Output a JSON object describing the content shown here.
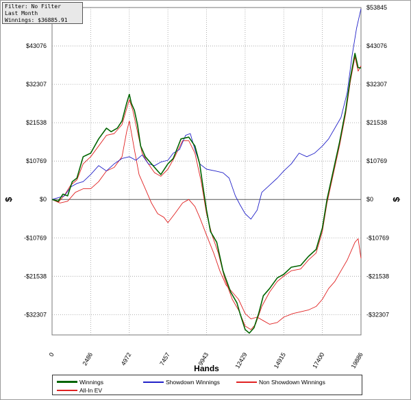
{
  "info": {
    "filter": "Filter: No Filter",
    "period": "Last Month",
    "winnings": "Winnings: $36885.91"
  },
  "colors": {
    "winnings": "#006400",
    "showdown": "#2020c8",
    "non_showdown": "#e02020",
    "allin_ev": "#e02020",
    "zero_line": "#555555",
    "grid": "#9a9a9a"
  },
  "legend": [
    {
      "name": "Winnings",
      "color": "#006400"
    },
    {
      "name": "Showdown Winnings",
      "color": "#2020c8"
    },
    {
      "name": "Non Showdown Winnings",
      "color": "#e02020"
    },
    {
      "name": "All-In EV",
      "color": "#e02020"
    }
  ],
  "chart_data": {
    "type": "line",
    "title": "",
    "xlabel": "Hands",
    "ylabel": "$",
    "xlim": [
      0,
      19886
    ],
    "ylim": [
      -38000,
      53845
    ],
    "x_ticks": [
      0,
      2486,
      4972,
      7457,
      9943,
      12429,
      14915,
      17400,
      19886
    ],
    "y_ticks": [
      53845,
      43076,
      32307,
      21538,
      10769,
      0,
      -10769,
      -21538,
      -32307
    ],
    "y_tick_labels": [
      "$53845",
      "$43076",
      "$32307",
      "$21538",
      "$10769",
      "$0",
      "-$10769",
      "-$21538",
      "-$32307"
    ],
    "grid": true,
    "legend_position": "bottom",
    "series": [
      {
        "name": "Winnings",
        "points": [
          [
            0,
            0
          ],
          [
            400,
            -500
          ],
          [
            700,
            1500
          ],
          [
            1000,
            1000
          ],
          [
            1300,
            5000
          ],
          [
            1600,
            6000
          ],
          [
            2000,
            12000
          ],
          [
            2486,
            13000
          ],
          [
            3000,
            17000
          ],
          [
            3500,
            20000
          ],
          [
            3800,
            19000
          ],
          [
            4200,
            20000
          ],
          [
            4500,
            22000
          ],
          [
            4800,
            27000
          ],
          [
            4972,
            29500
          ],
          [
            5100,
            27000
          ],
          [
            5300,
            25000
          ],
          [
            5500,
            21000
          ],
          [
            5700,
            15000
          ],
          [
            6000,
            12000
          ],
          [
            6400,
            10000
          ],
          [
            6800,
            8000
          ],
          [
            7000,
            7000
          ],
          [
            7457,
            10000
          ],
          [
            7800,
            11500
          ],
          [
            8300,
            17000
          ],
          [
            8800,
            17500
          ],
          [
            9200,
            15000
          ],
          [
            9500,
            10000
          ],
          [
            9700,
            4000
          ],
          [
            9943,
            -3000
          ],
          [
            10200,
            -9000
          ],
          [
            10600,
            -12000
          ],
          [
            11000,
            -20000
          ],
          [
            11500,
            -26000
          ],
          [
            11900,
            -29000
          ],
          [
            12100,
            -32000
          ],
          [
            12429,
            -36500
          ],
          [
            12700,
            -37500
          ],
          [
            13000,
            -36000
          ],
          [
            13300,
            -32000
          ],
          [
            13600,
            -27000
          ],
          [
            14000,
            -25000
          ],
          [
            14500,
            -22000
          ],
          [
            14915,
            -21000
          ],
          [
            15400,
            -19000
          ],
          [
            16000,
            -18500
          ],
          [
            16500,
            -16000
          ],
          [
            17000,
            -14000
          ],
          [
            17400,
            -8000
          ],
          [
            17700,
            0
          ],
          [
            18100,
            8000
          ],
          [
            18500,
            16000
          ],
          [
            18900,
            25000
          ],
          [
            19200,
            34000
          ],
          [
            19500,
            41000
          ],
          [
            19700,
            37000
          ],
          [
            19886,
            36886
          ]
        ]
      },
      {
        "name": "Showdown Winnings",
        "points": [
          [
            0,
            0
          ],
          [
            400,
            500
          ],
          [
            800,
            1000
          ],
          [
            1200,
            3500
          ],
          [
            1600,
            4500
          ],
          [
            2000,
            5000
          ],
          [
            2486,
            7000
          ],
          [
            3000,
            9500
          ],
          [
            3500,
            8000
          ],
          [
            4000,
            10000
          ],
          [
            4500,
            11500
          ],
          [
            4972,
            12000
          ],
          [
            5400,
            11000
          ],
          [
            5800,
            12500
          ],
          [
            6200,
            10000
          ],
          [
            6600,
            9500
          ],
          [
            7000,
            10500
          ],
          [
            7457,
            11000
          ],
          [
            7800,
            13000
          ],
          [
            8200,
            14000
          ],
          [
            8600,
            18000
          ],
          [
            8900,
            18500
          ],
          [
            9200,
            14000
          ],
          [
            9500,
            10000
          ],
          [
            9943,
            8500
          ],
          [
            10500,
            8000
          ],
          [
            11000,
            7500
          ],
          [
            11400,
            6000
          ],
          [
            11800,
            1000
          ],
          [
            12100,
            -1500
          ],
          [
            12429,
            -4000
          ],
          [
            12800,
            -5500
          ],
          [
            13200,
            -3000
          ],
          [
            13500,
            2000
          ],
          [
            14000,
            4000
          ],
          [
            14500,
            6000
          ],
          [
            14915,
            8000
          ],
          [
            15400,
            10000
          ],
          [
            15900,
            13000
          ],
          [
            16400,
            12000
          ],
          [
            16900,
            13000
          ],
          [
            17400,
            15000
          ],
          [
            17800,
            17000
          ],
          [
            18200,
            20000
          ],
          [
            18600,
            23000
          ],
          [
            19000,
            30000
          ],
          [
            19300,
            40000
          ],
          [
            19600,
            48000
          ],
          [
            19886,
            53500
          ]
        ]
      },
      {
        "name": "Non Showdown Winnings",
        "points": [
          [
            0,
            0
          ],
          [
            500,
            -1000
          ],
          [
            1000,
            -500
          ],
          [
            1500,
            2000
          ],
          [
            2000,
            3000
          ],
          [
            2486,
            3000
          ],
          [
            3000,
            5000
          ],
          [
            3500,
            8000
          ],
          [
            4000,
            9000
          ],
          [
            4500,
            12000
          ],
          [
            4800,
            19000
          ],
          [
            4972,
            22000
          ],
          [
            5300,
            14000
          ],
          [
            5600,
            7000
          ],
          [
            6000,
            3000
          ],
          [
            6400,
            -1000
          ],
          [
            6800,
            -4000
          ],
          [
            7200,
            -5000
          ],
          [
            7457,
            -6500
          ],
          [
            7900,
            -4000
          ],
          [
            8400,
            -1000
          ],
          [
            8800,
            0
          ],
          [
            9200,
            -2000
          ],
          [
            9500,
            -5000
          ],
          [
            9943,
            -10000
          ],
          [
            10400,
            -15000
          ],
          [
            10800,
            -20000
          ],
          [
            11200,
            -24000
          ],
          [
            11600,
            -26000
          ],
          [
            12000,
            -28000
          ],
          [
            12429,
            -32000
          ],
          [
            12800,
            -33500
          ],
          [
            13200,
            -33000
          ],
          [
            13600,
            -34000
          ],
          [
            14000,
            -35000
          ],
          [
            14500,
            -34500
          ],
          [
            14915,
            -33000
          ],
          [
            15500,
            -32000
          ],
          [
            16000,
            -31500
          ],
          [
            16500,
            -31000
          ],
          [
            17000,
            -30000
          ],
          [
            17400,
            -28000
          ],
          [
            17800,
            -25000
          ],
          [
            18200,
            -23000
          ],
          [
            18600,
            -20000
          ],
          [
            19000,
            -17000
          ],
          [
            19300,
            -14000
          ],
          [
            19500,
            -12000
          ],
          [
            19700,
            -11000
          ],
          [
            19886,
            -16500
          ]
        ]
      },
      {
        "name": "All-In EV",
        "points": [
          [
            0,
            0
          ],
          [
            400,
            -800
          ],
          [
            800,
            1200
          ],
          [
            1200,
            4000
          ],
          [
            1600,
            5500
          ],
          [
            2000,
            10000
          ],
          [
            2486,
            12000
          ],
          [
            3000,
            15000
          ],
          [
            3500,
            18000
          ],
          [
            4000,
            18500
          ],
          [
            4500,
            21000
          ],
          [
            4972,
            28000
          ],
          [
            5200,
            25000
          ],
          [
            5500,
            19000
          ],
          [
            5800,
            13000
          ],
          [
            6200,
            10000
          ],
          [
            6600,
            7500
          ],
          [
            7000,
            6500
          ],
          [
            7457,
            8500
          ],
          [
            7900,
            12000
          ],
          [
            8400,
            16500
          ],
          [
            8800,
            16500
          ],
          [
            9200,
            13000
          ],
          [
            9600,
            5000
          ],
          [
            9943,
            -4000
          ],
          [
            10300,
            -10000
          ],
          [
            10700,
            -15000
          ],
          [
            11100,
            -22000
          ],
          [
            11600,
            -28000
          ],
          [
            12000,
            -31000
          ],
          [
            12429,
            -35500
          ],
          [
            12800,
            -36500
          ],
          [
            13100,
            -35000
          ],
          [
            13500,
            -30000
          ],
          [
            14000,
            -26000
          ],
          [
            14500,
            -23000
          ],
          [
            14915,
            -21500
          ],
          [
            15400,
            -20000
          ],
          [
            16000,
            -19500
          ],
          [
            16500,
            -17000
          ],
          [
            17000,
            -15000
          ],
          [
            17400,
            -9000
          ],
          [
            17700,
            -1000
          ],
          [
            18100,
            7000
          ],
          [
            18500,
            15000
          ],
          [
            18900,
            24000
          ],
          [
            19200,
            33000
          ],
          [
            19500,
            40000
          ],
          [
            19700,
            36000
          ],
          [
            19886,
            37500
          ]
        ]
      }
    ]
  }
}
